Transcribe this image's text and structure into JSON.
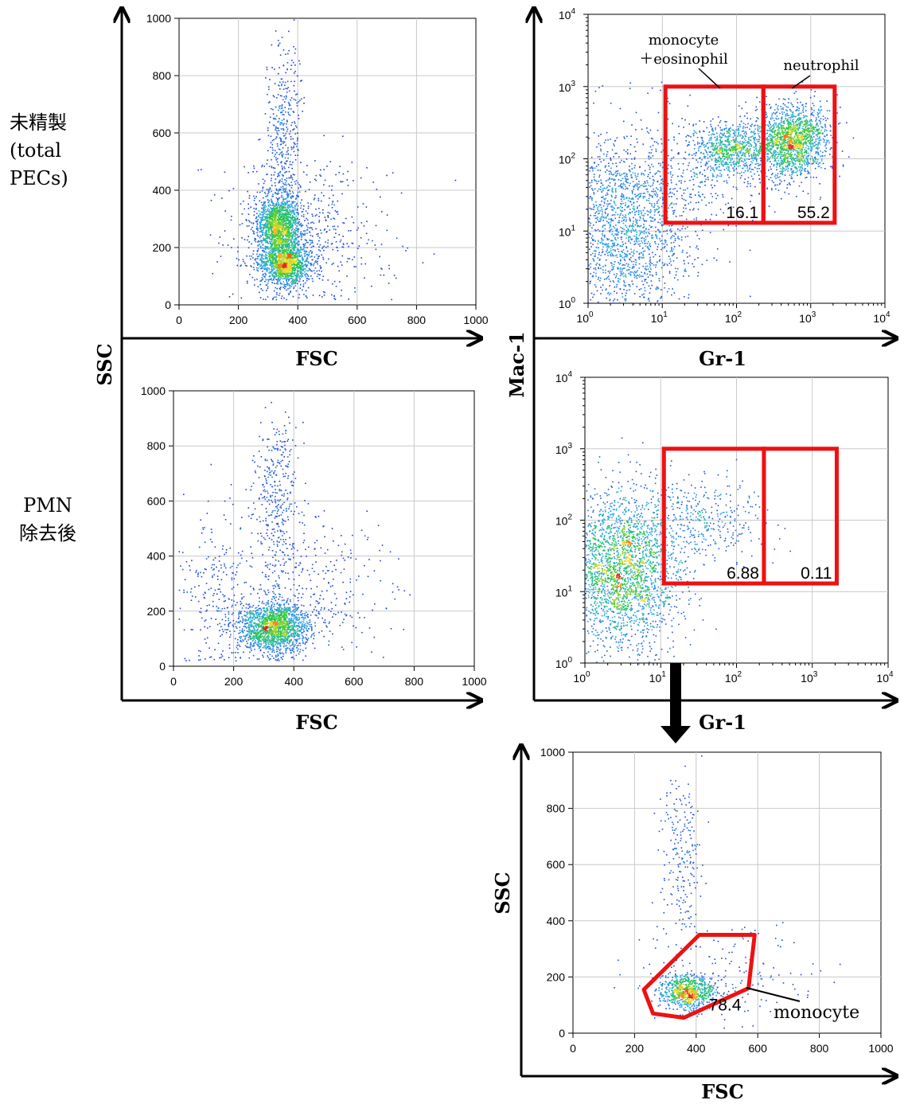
{
  "row_labels": {
    "top": [
      "未精製",
      "(total",
      "PECs)"
    ],
    "bottom": [
      "PMN",
      "除去後"
    ]
  },
  "axis_titles": {
    "left_x_top": "FSC",
    "left_x_bottom": "FSC",
    "left_y": "SSC",
    "right_x_top": "Gr-1",
    "right_x_bottom": "Gr-1",
    "right_y": "Mac-1",
    "bottom_x": "FSC",
    "bottom_y": "SSC"
  },
  "chart_data": [
    {
      "id": "p1",
      "type": "scatter",
      "title": "",
      "xlabel": "FSC",
      "ylabel": "SSC",
      "xscale": "linear",
      "xlim": [
        0,
        1000
      ],
      "ylim": [
        0,
        1000
      ],
      "xticks": [
        "0",
        "200",
        "400",
        "600",
        "800",
        "1000"
      ],
      "yticks": [
        "0",
        "200",
        "400",
        "600",
        "800",
        "1000"
      ],
      "grid": true,
      "clusters": [
        {
          "x": 335,
          "y": 270,
          "sx": 40,
          "sy": 60,
          "n": 1600
        },
        {
          "x": 355,
          "y": 140,
          "sx": 45,
          "sy": 35,
          "n": 1200
        },
        {
          "x": 350,
          "y": 550,
          "sx": 30,
          "sy": 180,
          "n": 450
        },
        {
          "x": 420,
          "y": 250,
          "sx": 150,
          "sy": 130,
          "n": 500
        }
      ],
      "gates": []
    },
    {
      "id": "p2",
      "type": "scatter",
      "title": "",
      "xlabel": "Gr-1",
      "ylabel": "Mac-1",
      "xscale": "log",
      "xlim": [
        1,
        10000
      ],
      "ylim": [
        1,
        10000
      ],
      "grid": true,
      "clusters": [
        {
          "x": 550,
          "y": 180,
          "sx": 0.25,
          "sy": 0.25,
          "n": 1600
        },
        {
          "x": 80,
          "y": 140,
          "sx": 0.25,
          "sy": 0.18,
          "n": 700
        },
        {
          "x": 3,
          "y": 12,
          "sx": 0.45,
          "sy": 0.6,
          "n": 1800
        },
        {
          "x": 30,
          "y": 60,
          "sx": 0.5,
          "sy": 0.4,
          "n": 300
        }
      ],
      "gates": [
        {
          "label": "monocyte ＋eosinophil",
          "value": "16.1",
          "x": [
            11,
            230
          ],
          "y": [
            13,
            1000
          ]
        },
        {
          "label": "neutrophil",
          "value": "55.2",
          "x": [
            230,
            2100
          ],
          "y": [
            13,
            1000
          ]
        }
      ],
      "annotations": [
        "monocyte",
        "＋eosinophil",
        "neutrophil"
      ]
    },
    {
      "id": "p3",
      "type": "scatter",
      "title": "",
      "xlabel": "FSC",
      "ylabel": "SSC",
      "xscale": "linear",
      "xlim": [
        0,
        1000
      ],
      "ylim": [
        0,
        1000
      ],
      "grid": true,
      "clusters": [
        {
          "x": 330,
          "y": 140,
          "sx": 60,
          "sy": 45,
          "n": 1700
        },
        {
          "x": 340,
          "y": 600,
          "sx": 40,
          "sy": 150,
          "n": 380
        },
        {
          "x": 150,
          "y": 250,
          "sx": 70,
          "sy": 150,
          "n": 250
        },
        {
          "x": 480,
          "y": 300,
          "sx": 120,
          "sy": 120,
          "n": 250
        }
      ],
      "gates": []
    },
    {
      "id": "p4",
      "type": "scatter",
      "title": "",
      "xlabel": "Gr-1",
      "ylabel": "Mac-1",
      "xscale": "log",
      "xlim": [
        1,
        10000
      ],
      "ylim": [
        1,
        10000
      ],
      "grid": true,
      "clusters": [
        {
          "x": 3,
          "y": 20,
          "sx": 0.4,
          "sy": 0.55,
          "n": 2600
        },
        {
          "x": 40,
          "y": 100,
          "sx": 0.4,
          "sy": 0.3,
          "n": 350
        }
      ],
      "gates": [
        {
          "label": "",
          "value": "6.88",
          "x": [
            11,
            230
          ],
          "y": [
            13,
            1000
          ]
        },
        {
          "label": "",
          "value": "0.11",
          "x": [
            230,
            2100
          ],
          "y": [
            13,
            1000
          ]
        }
      ]
    },
    {
      "id": "p5",
      "type": "scatter",
      "title": "",
      "xlabel": "FSC",
      "ylabel": "SSC",
      "xscale": "linear",
      "xlim": [
        0,
        1000
      ],
      "ylim": [
        0,
        1000
      ],
      "grid": true,
      "clusters": [
        {
          "x": 370,
          "y": 150,
          "sx": 45,
          "sy": 30,
          "n": 800
        },
        {
          "x": 350,
          "y": 620,
          "sx": 35,
          "sy": 150,
          "n": 220
        },
        {
          "x": 480,
          "y": 220,
          "sx": 150,
          "sy": 90,
          "n": 150
        }
      ],
      "gates": [
        {
          "label": "monocyte",
          "value": "78.4",
          "polygon": [
            [
              230,
              155
            ],
            [
              260,
              70
            ],
            [
              360,
              55
            ],
            [
              570,
              160
            ],
            [
              590,
              350
            ],
            [
              410,
              350
            ]
          ]
        }
      ],
      "annotations": [
        "monocyte"
      ]
    }
  ],
  "colors": {
    "gate": "#ee1111",
    "gate_pink": "#dd44cc",
    "dot_low": "#1a28d8",
    "grid": "#c8c8c8",
    "axis": "#000000"
  }
}
